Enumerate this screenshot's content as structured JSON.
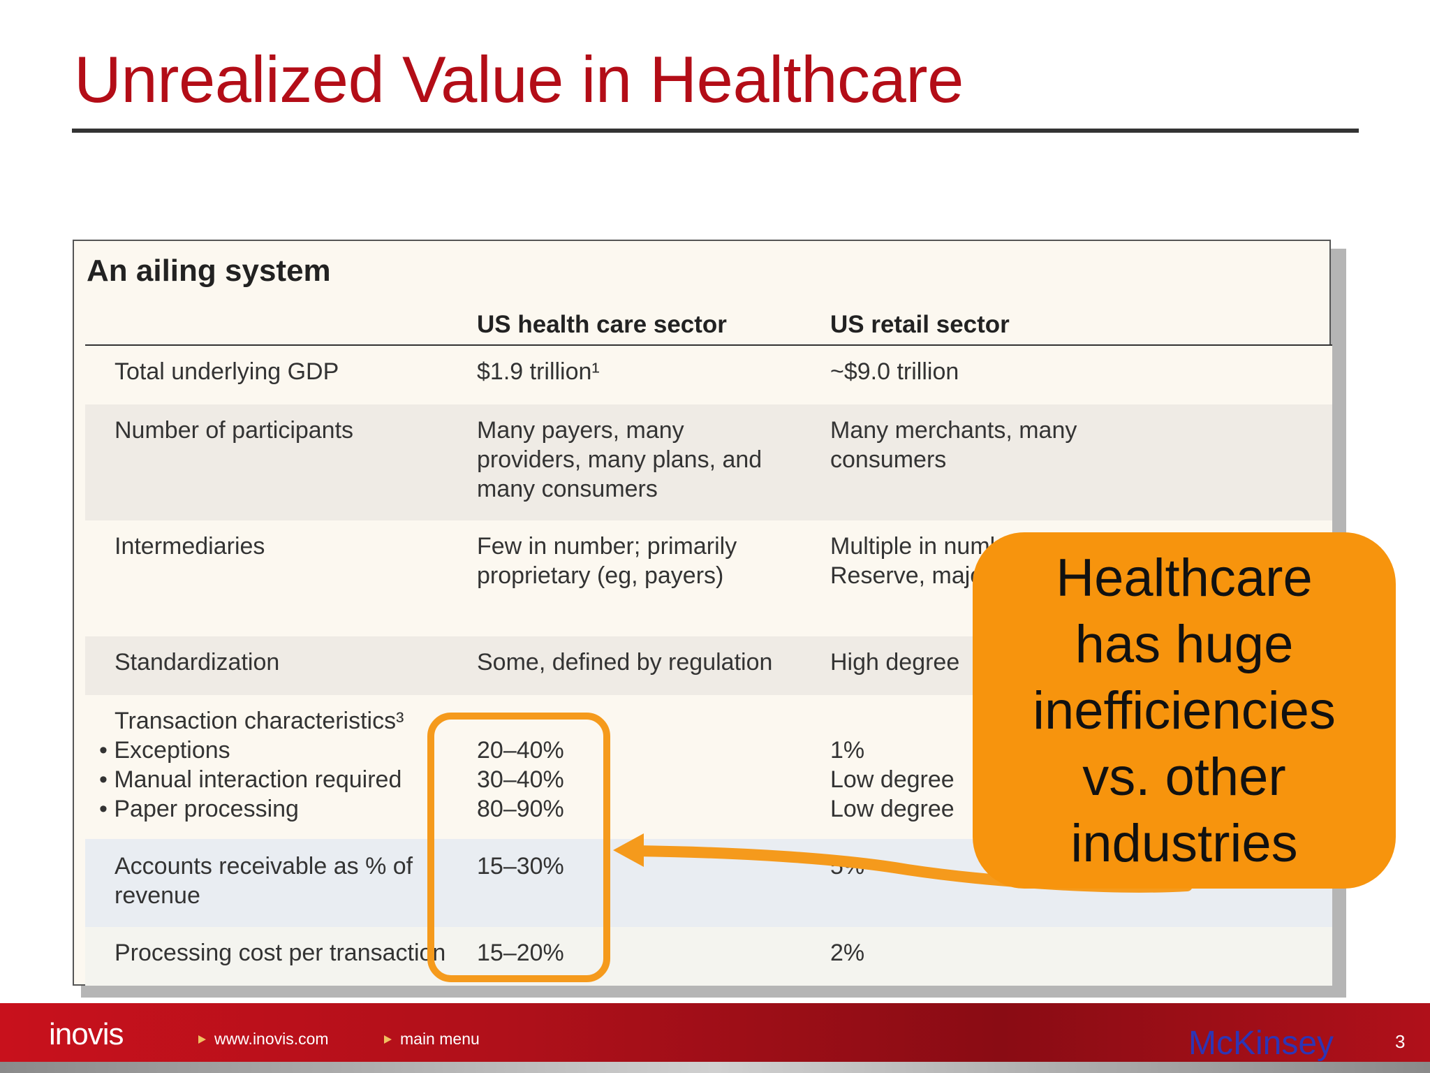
{
  "slide": {
    "title": "Unrealized Value in Healthcare",
    "page_number": "3"
  },
  "table": {
    "title": "An ailing system",
    "columns": [
      "",
      "US health care sector",
      "US retail sector"
    ],
    "rows": [
      {
        "label": "Total underlying GDP",
        "health": "$1.9 trillion¹",
        "retail": "~$9.0 trillion"
      },
      {
        "label": "Number of participants",
        "health": "Many payers, many\nproviders, many plans, and\nmany consumers",
        "retail": "Many merchants, many\nconsumers"
      },
      {
        "label": "Intermediaries",
        "health": "Few in number; primarily\nproprietary (eg, payers)",
        "retail": "Multiple in numbe\nReserve, major"
      },
      {
        "label": "Standardization",
        "health": "Some, defined by regulation",
        "retail": "High degree"
      },
      {
        "label": "Transaction characteristics³",
        "bullets": [
          "Exceptions",
          "Manual interaction required",
          "Paper processing"
        ],
        "health_values": [
          "20–40%",
          "30–40%",
          "80–90%"
        ],
        "retail_values": [
          "1%",
          "Low degree",
          "Low degree"
        ]
      },
      {
        "label": "Accounts receivable as % of\nrevenue",
        "health": "15–30%",
        "retail": "5%"
      },
      {
        "label": "Processing cost per transaction",
        "health": "15–20%",
        "retail": "2%"
      }
    ]
  },
  "callout": {
    "text": "Healthcare\nhas huge\ninefficiencies\nvs. other\nindustries"
  },
  "footer": {
    "logo": "inovis",
    "link_site": "www.inovis.com",
    "link_menu": "main menu",
    "source": "McKinsey"
  },
  "colors": {
    "title": "#b30d17",
    "callout": "#f7940d",
    "highlight_border": "#f59a1c",
    "footer": "#c8111c",
    "source_text": "#2d35b5"
  }
}
